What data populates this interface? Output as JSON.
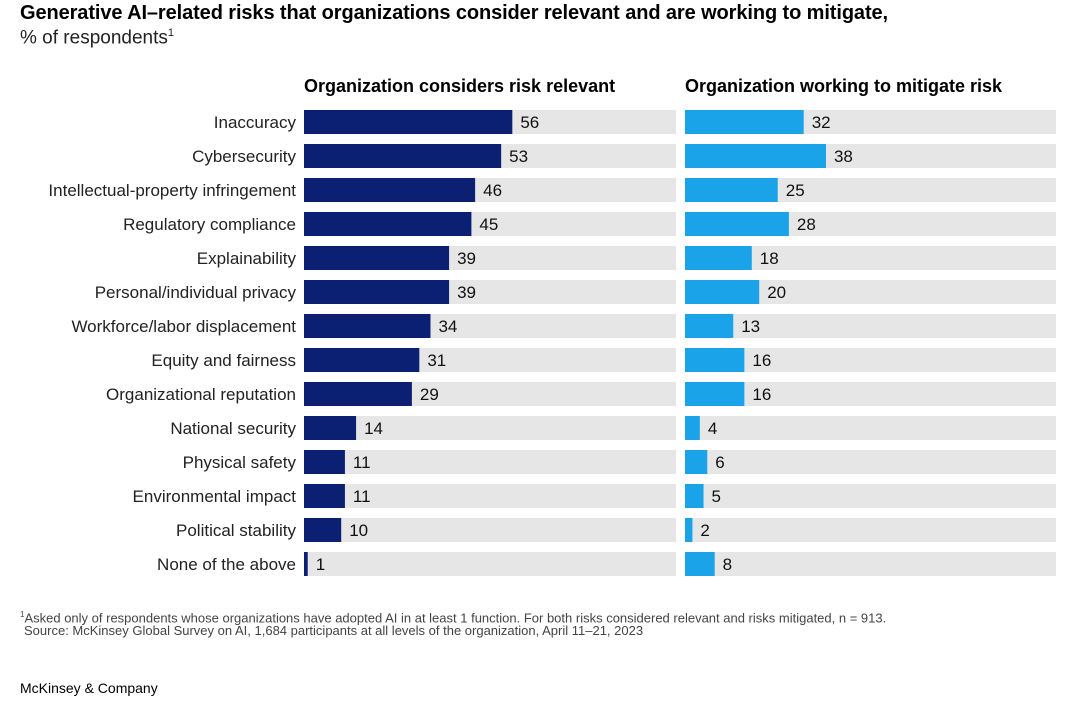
{
  "header": {
    "title": "Generative AI–related risks that organizations consider relevant and are working to mitigate,",
    "subtitle": "% of respondents",
    "subtitle_footnote_marker": "1"
  },
  "footer": {
    "footnote_marker": "1",
    "footnote": "Asked only of respondents whose organizations have adopted AI in at least 1 function. For both risks considered relevant and risks mitigated, n = 913.",
    "source": "Source: McKinsey Global Survey on AI, 1,684 participants at all levels of the organization, April 11–21, 2023",
    "brand": "McKinsey & Company"
  },
  "colors": {
    "relevant": "#0b1f73",
    "mitigate": "#1aa3e8",
    "track": "#e6e6e6"
  },
  "chart_data": {
    "type": "bar",
    "orientation": "horizontal",
    "xlim": [
      0,
      100
    ],
    "categories": [
      "Inaccuracy",
      "Cybersecurity",
      "Intellectual-property infringement",
      "Regulatory compliance",
      "Explainability",
      "Personal/individual privacy",
      "Workforce/labor displacement",
      "Equity and fairness",
      "Organizational reputation",
      "National security",
      "Physical safety",
      "Environmental impact",
      "Political stability",
      "None of the above"
    ],
    "series": [
      {
        "name": "Organization considers risk relevant",
        "values": [
          56,
          53,
          46,
          45,
          39,
          39,
          34,
          31,
          29,
          14,
          11,
          11,
          10,
          1
        ]
      },
      {
        "name": "Organization working to mitigate risk",
        "values": [
          32,
          38,
          25,
          28,
          18,
          20,
          13,
          16,
          16,
          4,
          6,
          5,
          2,
          8
        ]
      }
    ]
  }
}
